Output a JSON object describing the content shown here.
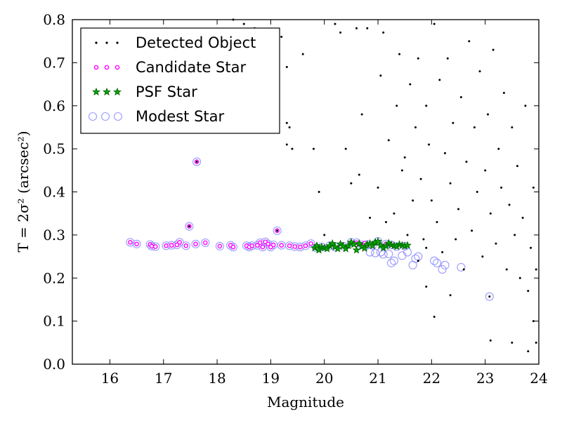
{
  "chart_data": {
    "type": "scatter",
    "xlabel": "Magnitude",
    "ylabel": "T = 2σ² (arcsec²)",
    "xlim": [
      15.3,
      24
    ],
    "ylim": [
      0,
      0.8
    ],
    "x_ticks": [
      "16",
      "17",
      "18",
      "19",
      "20",
      "21",
      "22",
      "23",
      "24"
    ],
    "y_ticks": [
      "0.0",
      "0.1",
      "0.2",
      "0.3",
      "0.4",
      "0.5",
      "0.6",
      "0.7",
      "0.8"
    ],
    "grid": false,
    "legend_position": "top-left",
    "colors": {
      "detected": "#000000",
      "candidate_edge": "#ff00ff",
      "psf_fill": "#00aa00",
      "psf_edge": "#006400",
      "modest_edge": "#9999ff"
    },
    "series": [
      {
        "name": "Detected Object",
        "marker": "dot",
        "points": [
          [
            17.48,
            0.32
          ],
          [
            17.62,
            0.47
          ],
          [
            19.12,
            0.31
          ],
          [
            23.08,
            0.157
          ],
          [
            23.1,
            0.055
          ],
          [
            23.5,
            0.05
          ],
          [
            23.8,
            0.03
          ],
          [
            23.9,
            0.1
          ],
          [
            23.95,
            0.05
          ],
          [
            22.05,
            0.11
          ],
          [
            21.9,
            0.18
          ],
          [
            21.75,
            0.24
          ],
          [
            21.9,
            0.27
          ],
          [
            22.35,
            0.16
          ],
          [
            18.3,
            0.8
          ],
          [
            18.5,
            0.79
          ],
          [
            18.7,
            0.78
          ],
          [
            19.2,
            0.76
          ],
          [
            19.3,
            0.69
          ],
          [
            19.3,
            0.56
          ],
          [
            19.35,
            0.55
          ],
          [
            19.3,
            0.51
          ],
          [
            19.4,
            0.5
          ],
          [
            19.6,
            0.72
          ],
          [
            19.8,
            0.5
          ],
          [
            19.9,
            0.4
          ],
          [
            20.0,
            0.3
          ],
          [
            20.2,
            0.79
          ],
          [
            20.3,
            0.77
          ],
          [
            20.4,
            0.5
          ],
          [
            20.5,
            0.42
          ],
          [
            20.6,
            0.78
          ],
          [
            20.65,
            0.44
          ],
          [
            20.7,
            0.58
          ],
          [
            20.8,
            0.78
          ],
          [
            20.85,
            0.34
          ],
          [
            21.0,
            0.41
          ],
          [
            21.05,
            0.67
          ],
          [
            21.1,
            0.77
          ],
          [
            21.15,
            0.33
          ],
          [
            21.2,
            0.52
          ],
          [
            21.3,
            0.35
          ],
          [
            21.35,
            0.6
          ],
          [
            21.4,
            0.72
          ],
          [
            21.45,
            0.45
          ],
          [
            21.5,
            0.48
          ],
          [
            21.55,
            0.3
          ],
          [
            21.6,
            0.65
          ],
          [
            21.65,
            0.38
          ],
          [
            21.7,
            0.55
          ],
          [
            21.75,
            0.71
          ],
          [
            21.8,
            0.43
          ],
          [
            21.85,
            0.29
          ],
          [
            21.9,
            0.6
          ],
          [
            21.95,
            0.51
          ],
          [
            22.0,
            0.38
          ],
          [
            22.05,
            0.79
          ],
          [
            22.1,
            0.33
          ],
          [
            22.15,
            0.66
          ],
          [
            22.2,
            0.26
          ],
          [
            22.25,
            0.49
          ],
          [
            22.3,
            0.71
          ],
          [
            22.35,
            0.42
          ],
          [
            22.4,
            0.56
          ],
          [
            22.45,
            0.29
          ],
          [
            22.5,
            0.36
          ],
          [
            22.55,
            0.62
          ],
          [
            22.6,
            0.22
          ],
          [
            22.65,
            0.47
          ],
          [
            22.7,
            0.75
          ],
          [
            22.75,
            0.31
          ],
          [
            22.8,
            0.55
          ],
          [
            22.85,
            0.4
          ],
          [
            22.9,
            0.68
          ],
          [
            22.95,
            0.25
          ],
          [
            23.0,
            0.45
          ],
          [
            23.05,
            0.58
          ],
          [
            23.1,
            0.35
          ],
          [
            23.15,
            0.73
          ],
          [
            23.2,
            0.28
          ],
          [
            23.25,
            0.5
          ],
          [
            23.3,
            0.41
          ],
          [
            23.35,
            0.63
          ],
          [
            23.4,
            0.22
          ],
          [
            23.45,
            0.37
          ],
          [
            23.5,
            0.55
          ],
          [
            23.55,
            0.3
          ],
          [
            23.6,
            0.46
          ],
          [
            23.65,
            0.2
          ],
          [
            23.7,
            0.34
          ],
          [
            23.75,
            0.6
          ],
          [
            23.8,
            0.17
          ],
          [
            23.85,
            0.27
          ],
          [
            23.9,
            0.41
          ],
          [
            23.95,
            0.22
          ]
        ]
      },
      {
        "name": "Candidate Star",
        "marker": "small-circle",
        "points": [
          [
            16.38,
            0.283
          ],
          [
            16.5,
            0.279
          ],
          [
            16.75,
            0.278
          ],
          [
            16.78,
            0.274
          ],
          [
            16.85,
            0.273
          ],
          [
            17.05,
            0.275
          ],
          [
            17.15,
            0.276
          ],
          [
            17.25,
            0.277
          ],
          [
            17.3,
            0.283
          ],
          [
            17.42,
            0.275
          ],
          [
            17.48,
            0.32
          ],
          [
            17.62,
            0.47
          ],
          [
            17.6,
            0.279
          ],
          [
            17.78,
            0.282
          ],
          [
            18.05,
            0.274
          ],
          [
            18.25,
            0.276
          ],
          [
            18.3,
            0.272
          ],
          [
            18.55,
            0.275
          ],
          [
            18.6,
            0.272
          ],
          [
            18.65,
            0.275
          ],
          [
            18.75,
            0.276
          ],
          [
            18.8,
            0.282
          ],
          [
            18.85,
            0.272
          ],
          [
            18.9,
            0.284
          ],
          [
            18.95,
            0.279
          ],
          [
            19.0,
            0.272
          ],
          [
            19.05,
            0.277
          ],
          [
            19.12,
            0.31
          ],
          [
            19.2,
            0.276
          ],
          [
            19.35,
            0.275
          ],
          [
            19.45,
            0.273
          ],
          [
            19.55,
            0.272
          ],
          [
            19.65,
            0.275
          ],
          [
            19.75,
            0.28
          ],
          [
            20.6,
            0.282
          ],
          [
            20.7,
            0.277
          ],
          [
            20.75,
            0.281
          ],
          [
            20.9,
            0.276
          ],
          [
            21.15,
            0.279
          ]
        ]
      },
      {
        "name": "PSF Star",
        "marker": "star",
        "points": [
          [
            19.82,
            0.27
          ],
          [
            19.86,
            0.275
          ],
          [
            19.9,
            0.265
          ],
          [
            19.95,
            0.272
          ],
          [
            20.0,
            0.27
          ],
          [
            20.05,
            0.268
          ],
          [
            20.1,
            0.275
          ],
          [
            20.15,
            0.28
          ],
          [
            20.2,
            0.272
          ],
          [
            20.25,
            0.268
          ],
          [
            20.3,
            0.279
          ],
          [
            20.35,
            0.274
          ],
          [
            20.4,
            0.268
          ],
          [
            20.45,
            0.275
          ],
          [
            20.5,
            0.283
          ],
          [
            20.55,
            0.278
          ],
          [
            20.6,
            0.265
          ],
          [
            20.65,
            0.28
          ],
          [
            20.7,
            0.273
          ],
          [
            20.75,
            0.269
          ],
          [
            20.8,
            0.278
          ],
          [
            20.85,
            0.28
          ],
          [
            20.9,
            0.275
          ],
          [
            20.95,
            0.283
          ],
          [
            21.0,
            0.285
          ],
          [
            21.05,
            0.276
          ],
          [
            21.1,
            0.27
          ],
          [
            21.15,
            0.274
          ],
          [
            21.2,
            0.281
          ],
          [
            21.25,
            0.277
          ],
          [
            21.3,
            0.275
          ],
          [
            21.35,
            0.273
          ],
          [
            21.4,
            0.278
          ],
          [
            21.45,
            0.276
          ],
          [
            21.5,
            0.274
          ],
          [
            21.55,
            0.276
          ]
        ]
      },
      {
        "name": "Modest Star",
        "marker": "open-circle",
        "points": [
          [
            16.38,
            0.283
          ],
          [
            16.5,
            0.279
          ],
          [
            16.75,
            0.278
          ],
          [
            16.78,
            0.274
          ],
          [
            16.85,
            0.273
          ],
          [
            17.05,
            0.275
          ],
          [
            17.15,
            0.276
          ],
          [
            17.25,
            0.277
          ],
          [
            17.3,
            0.283
          ],
          [
            17.42,
            0.275
          ],
          [
            17.48,
            0.32
          ],
          [
            17.62,
            0.47
          ],
          [
            17.6,
            0.279
          ],
          [
            17.78,
            0.282
          ],
          [
            18.05,
            0.274
          ],
          [
            18.25,
            0.276
          ],
          [
            18.3,
            0.272
          ],
          [
            18.55,
            0.275
          ],
          [
            18.6,
            0.272
          ],
          [
            18.65,
            0.275
          ],
          [
            18.75,
            0.276
          ],
          [
            18.8,
            0.282
          ],
          [
            18.85,
            0.272
          ],
          [
            18.9,
            0.284
          ],
          [
            18.95,
            0.279
          ],
          [
            19.0,
            0.272
          ],
          [
            19.05,
            0.277
          ],
          [
            19.12,
            0.31
          ],
          [
            19.2,
            0.276
          ],
          [
            19.35,
            0.275
          ],
          [
            19.45,
            0.273
          ],
          [
            19.55,
            0.272
          ],
          [
            19.65,
            0.275
          ],
          [
            19.75,
            0.28
          ],
          [
            19.85,
            0.27
          ],
          [
            19.95,
            0.272
          ],
          [
            20.1,
            0.275
          ],
          [
            20.2,
            0.272
          ],
          [
            20.35,
            0.274
          ],
          [
            20.5,
            0.283
          ],
          [
            20.6,
            0.282
          ],
          [
            20.7,
            0.277
          ],
          [
            20.8,
            0.278
          ],
          [
            20.9,
            0.276
          ],
          [
            21.0,
            0.285
          ],
          [
            21.15,
            0.279
          ],
          [
            21.25,
            0.277
          ],
          [
            21.35,
            0.273
          ],
          [
            21.5,
            0.274
          ],
          [
            20.85,
            0.26
          ],
          [
            20.95,
            0.258
          ],
          [
            21.05,
            0.26
          ],
          [
            21.1,
            0.255
          ],
          [
            21.2,
            0.256
          ],
          [
            21.25,
            0.235
          ],
          [
            21.3,
            0.24
          ],
          [
            21.45,
            0.252
          ],
          [
            21.55,
            0.26
          ],
          [
            21.65,
            0.23
          ],
          [
            21.7,
            0.245
          ],
          [
            21.75,
            0.25
          ],
          [
            22.05,
            0.24
          ],
          [
            22.1,
            0.235
          ],
          [
            22.2,
            0.22
          ],
          [
            22.25,
            0.23
          ],
          [
            22.55,
            0.225
          ],
          [
            23.08,
            0.157
          ]
        ]
      }
    ]
  }
}
